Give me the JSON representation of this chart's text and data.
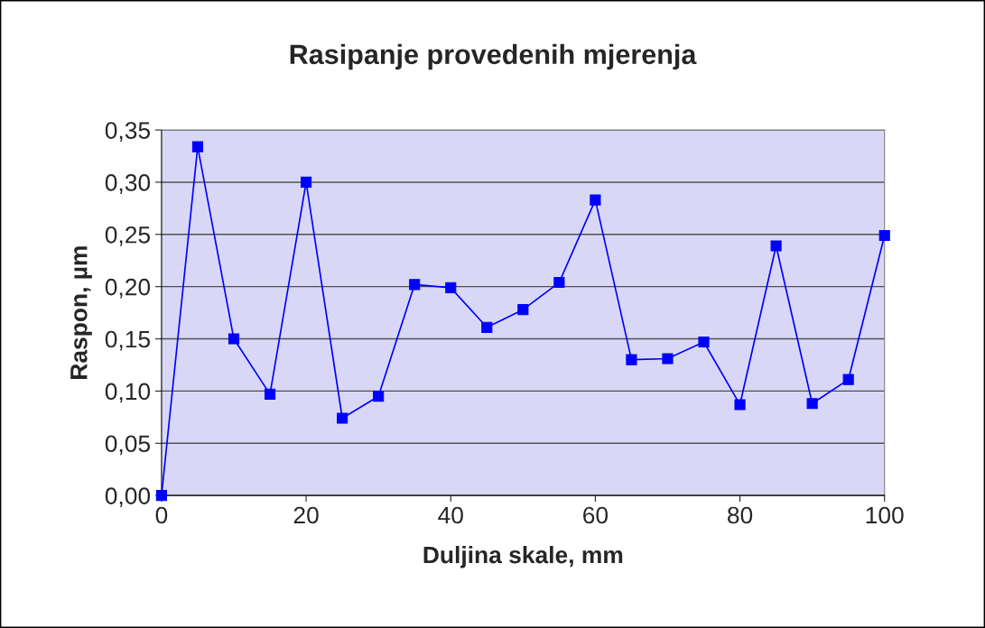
{
  "chart_data": {
    "type": "line",
    "title": "Rasipanje provedenih mjerenja",
    "xlabel": "Duljina skale, mm",
    "ylabel": "Raspon, µm",
    "x": [
      0,
      5,
      10,
      15,
      20,
      25,
      30,
      35,
      40,
      45,
      50,
      55,
      60,
      65,
      70,
      75,
      80,
      85,
      90,
      95,
      100
    ],
    "series": [
      {
        "color": "#0000ff",
        "values": [
          0.0,
          0.334,
          0.15,
          0.097,
          0.3,
          0.074,
          0.095,
          0.202,
          0.199,
          0.161,
          0.178,
          0.204,
          0.283,
          0.13,
          0.131,
          0.147,
          0.087,
          0.239,
          0.088,
          0.111,
          0.249
        ]
      }
    ],
    "xlim": [
      0,
      100
    ],
    "xticks": [
      0,
      20,
      40,
      60,
      80,
      100
    ],
    "ylim": [
      0,
      0.35
    ],
    "yticks": [
      {
        "value": 0,
        "label": "0,00"
      },
      {
        "value": 0.05,
        "label": "0,05"
      },
      {
        "value": 0.1,
        "label": "0,10"
      },
      {
        "value": 0.15,
        "label": "0,15"
      },
      {
        "value": 0.2,
        "label": "0,20"
      },
      {
        "value": 0.25,
        "label": "0,25"
      },
      {
        "value": 0.3,
        "label": "0,30"
      },
      {
        "value": 0.35,
        "label": "0,35"
      }
    ],
    "grid": "y",
    "marker": "square",
    "line_style": "solid"
  }
}
